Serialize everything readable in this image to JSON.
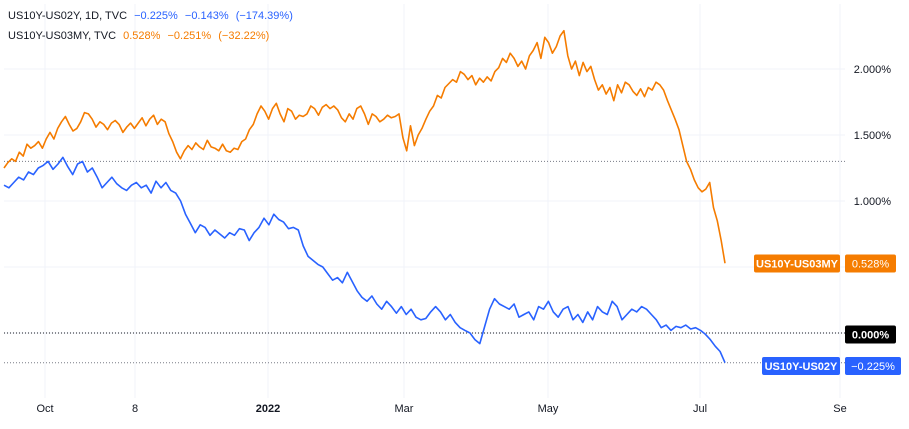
{
  "legend": [
    {
      "symbol": "US10Y-US02Y, 1D, TVC",
      "last": "−0.225%",
      "change": "−0.143%",
      "change_pct": "(−174.39%)",
      "color": "#2962ff"
    },
    {
      "symbol": "US10Y-US03MY, TVC",
      "last": "0.528%",
      "change": "−0.251%",
      "change_pct": "(−32.22%)",
      "color": "#f57c00"
    }
  ],
  "price_labels": [
    {
      "name": "US10Y-US03MY",
      "value": "0.528%",
      "color": "#f57c00"
    },
    {
      "name": "",
      "value": "0.000%",
      "color": "#000000"
    },
    {
      "name": "US10Y-US02Y",
      "value": "−0.225%",
      "color": "#2962ff"
    }
  ],
  "chart_data": {
    "type": "line",
    "y_unit": "%",
    "y_axis": {
      "ticks": [
        "2.000%",
        "1.500%",
        "1.000%"
      ],
      "tick_values": [
        2.0,
        1.5,
        1.0
      ]
    },
    "x_axis": {
      "ticks": [
        "Oct",
        "8",
        "2022",
        "Mar",
        "May",
        "Jul",
        "Se"
      ]
    },
    "grid": true,
    "reference_lines": [
      {
        "value": 1.3,
        "style": "dotted"
      },
      {
        "value": 0.0,
        "style": "dotted"
      },
      {
        "value": -0.225,
        "style": "dotted"
      }
    ],
    "series": [
      {
        "name": "US10Y-US03MY",
        "color": "#f57c00",
        "values": [
          1.25,
          1.29,
          1.32,
          1.3,
          1.37,
          1.34,
          1.43,
          1.4,
          1.42,
          1.45,
          1.4,
          1.47,
          1.52,
          1.47,
          1.55,
          1.6,
          1.64,
          1.58,
          1.53,
          1.55,
          1.6,
          1.67,
          1.66,
          1.62,
          1.56,
          1.6,
          1.58,
          1.54,
          1.59,
          1.61,
          1.58,
          1.52,
          1.56,
          1.59,
          1.55,
          1.59,
          1.63,
          1.57,
          1.62,
          1.65,
          1.58,
          1.62,
          1.6,
          1.51,
          1.45,
          1.37,
          1.32,
          1.38,
          1.42,
          1.39,
          1.44,
          1.41,
          1.39,
          1.46,
          1.41,
          1.4,
          1.38,
          1.43,
          1.38,
          1.37,
          1.4,
          1.39,
          1.45,
          1.47,
          1.54,
          1.58,
          1.66,
          1.72,
          1.68,
          1.62,
          1.7,
          1.74,
          1.66,
          1.6,
          1.7,
          1.68,
          1.62,
          1.65,
          1.64,
          1.66,
          1.72,
          1.7,
          1.65,
          1.71,
          1.73,
          1.7,
          1.72,
          1.69,
          1.63,
          1.6,
          1.66,
          1.62,
          1.7,
          1.72,
          1.66,
          1.58,
          1.66,
          1.64,
          1.6,
          1.62,
          1.65,
          1.63,
          1.64,
          1.66,
          1.48,
          1.38,
          1.57,
          1.42,
          1.5,
          1.55,
          1.62,
          1.68,
          1.72,
          1.8,
          1.78,
          1.86,
          1.89,
          1.92,
          1.9,
          1.98,
          1.96,
          1.92,
          1.95,
          1.88,
          1.93,
          1.9,
          1.94,
          1.91,
          1.98,
          2.01,
          2.08,
          2.05,
          2.12,
          2.08,
          2.02,
          2.06,
          2.0,
          2.1,
          2.14,
          2.2,
          2.08,
          2.24,
          2.2,
          2.12,
          2.17,
          2.25,
          2.29,
          2.1,
          2.0,
          2.06,
          1.95,
          2.05,
          1.98,
          2.02,
          1.92,
          1.84,
          1.88,
          1.81,
          1.86,
          1.76,
          1.88,
          1.82,
          1.9,
          1.88,
          1.83,
          1.8,
          1.85,
          1.79,
          1.86,
          1.84,
          1.9,
          1.88,
          1.84,
          1.76,
          1.69,
          1.62,
          1.54,
          1.42,
          1.3,
          1.24,
          1.16,
          1.1,
          1.07,
          1.09,
          1.14,
          0.95,
          0.85,
          0.7,
          0.528
        ]
      },
      {
        "name": "US10Y-US02Y",
        "color": "#2962ff",
        "values": [
          1.12,
          1.1,
          1.14,
          1.18,
          1.16,
          1.22,
          1.2,
          1.25,
          1.27,
          1.3,
          1.24,
          1.28,
          1.33,
          1.26,
          1.2,
          1.28,
          1.3,
          1.22,
          1.25,
          1.18,
          1.1,
          1.14,
          1.18,
          1.13,
          1.1,
          1.08,
          1.12,
          1.14,
          1.1,
          1.12,
          1.06,
          1.15,
          1.1,
          1.14,
          1.08,
          1.06,
          1.0,
          0.9,
          0.83,
          0.76,
          0.82,
          0.8,
          0.74,
          0.78,
          0.75,
          0.72,
          0.76,
          0.74,
          0.79,
          0.78,
          0.7,
          0.76,
          0.8,
          0.87,
          0.82,
          0.9,
          0.86,
          0.84,
          0.79,
          0.8,
          0.78,
          0.66,
          0.58,
          0.55,
          0.52,
          0.5,
          0.45,
          0.4,
          0.42,
          0.38,
          0.46,
          0.39,
          0.32,
          0.27,
          0.24,
          0.28,
          0.22,
          0.18,
          0.24,
          0.2,
          0.15,
          0.2,
          0.14,
          0.18,
          0.12,
          0.1,
          0.11,
          0.16,
          0.2,
          0.16,
          0.1,
          0.14,
          0.08,
          0.04,
          0.02,
          0.0,
          -0.05,
          -0.08,
          0.05,
          0.18,
          0.26,
          0.22,
          0.2,
          0.18,
          0.22,
          0.12,
          0.14,
          0.16,
          0.1,
          0.2,
          0.18,
          0.24,
          0.16,
          0.12,
          0.18,
          0.2,
          0.1,
          0.14,
          0.08,
          0.16,
          0.1,
          0.2,
          0.16,
          0.14,
          0.24,
          0.2,
          0.1,
          0.14,
          0.18,
          0.16,
          0.2,
          0.18,
          0.14,
          0.1,
          0.04,
          0.06,
          0.02,
          0.05,
          0.04,
          0.06,
          0.03,
          0.04,
          0.02,
          -0.01,
          -0.05,
          -0.1,
          -0.14,
          -0.225
        ]
      }
    ]
  }
}
